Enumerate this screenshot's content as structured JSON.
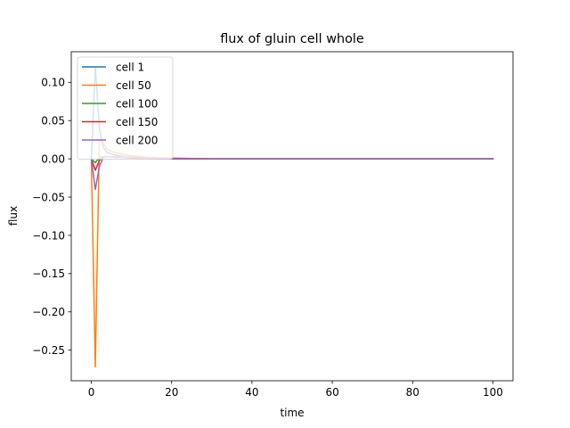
{
  "chart_data": {
    "type": "line",
    "title": "flux of gluin cell whole",
    "xlabel": "time",
    "ylabel": "flux",
    "xlim": [
      -5,
      105
    ],
    "ylim": [
      -0.29,
      0.14
    ],
    "x_ticks": [
      0,
      20,
      40,
      60,
      80,
      100
    ],
    "x_tick_labels": [
      "0",
      "20",
      "40",
      "60",
      "80",
      "100"
    ],
    "y_ticks": [
      0.1,
      0.05,
      0.0,
      -0.05,
      -0.1,
      -0.15,
      -0.2,
      -0.25
    ],
    "y_tick_labels": [
      "0.10",
      "0.05",
      "0.00",
      "−0.05",
      "−0.10",
      "−0.15",
      "−0.20",
      "−0.25"
    ],
    "grid": false,
    "legend_position": "top-left",
    "series": [
      {
        "name": "cell 1",
        "color": "#1f77b4",
        "x": [
          0,
          1,
          2,
          3,
          4,
          6,
          8,
          10,
          14,
          20,
          30,
          50,
          100
        ],
        "y": [
          0.0,
          0.12,
          0.04,
          0.015,
          0.008,
          0.005,
          0.003,
          0.002,
          0.001,
          0.0005,
          0.0,
          0.0,
          0.0
        ]
      },
      {
        "name": "cell 50",
        "color": "#ff7f0e",
        "x": [
          0,
          1,
          2,
          3,
          4,
          6,
          8,
          10,
          14,
          20,
          30,
          50,
          100
        ],
        "y": [
          0.0,
          -0.272,
          0.025,
          0.02,
          0.012,
          0.008,
          0.006,
          0.004,
          0.002,
          0.001,
          0.0,
          0.0,
          0.0
        ]
      },
      {
        "name": "cell 100",
        "color": "#2ca02c",
        "x": [
          0,
          1,
          2,
          3,
          4,
          6,
          8,
          10,
          14,
          20,
          30,
          50,
          100
        ],
        "y": [
          0.0,
          -0.005,
          0.002,
          0.003,
          0.003,
          0.002,
          0.002,
          0.001,
          0.0005,
          0.0,
          0.0,
          0.0,
          0.0
        ]
      },
      {
        "name": "cell 150",
        "color": "#d62728",
        "x": [
          0,
          1,
          2,
          3,
          4,
          6,
          8,
          10,
          14,
          20,
          30,
          50,
          100
        ],
        "y": [
          0.0,
          -0.015,
          -0.002,
          0.002,
          0.003,
          0.002,
          0.002,
          0.001,
          0.0005,
          0.0,
          0.0,
          0.0,
          0.0
        ]
      },
      {
        "name": "cell 200",
        "color": "#9467bd",
        "x": [
          0,
          1,
          2,
          3,
          4,
          6,
          8,
          10,
          14,
          20,
          30,
          50,
          100
        ],
        "y": [
          0.0,
          -0.04,
          -0.01,
          0.002,
          0.003,
          0.003,
          0.002,
          0.002,
          0.001,
          0.0005,
          0.0,
          0.0,
          0.0
        ]
      }
    ]
  }
}
